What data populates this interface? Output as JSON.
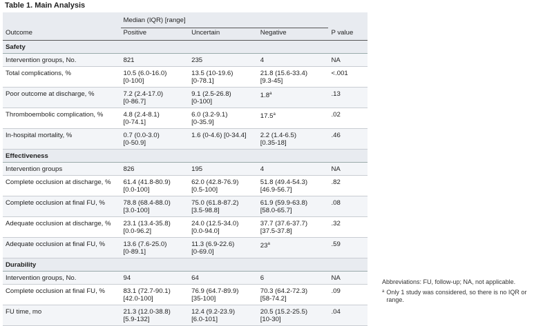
{
  "title": "Table 1. Main Analysis",
  "header": {
    "group_label": "Median (IQR) [range]",
    "columns": [
      "Outcome",
      "Positive",
      "Uncertain",
      "Negative",
      "P value"
    ]
  },
  "sections": [
    {
      "name": "Safety",
      "rows": [
        {
          "outcome": "Intervention groups, No.",
          "positive": [
            "821"
          ],
          "uncertain": [
            "235"
          ],
          "negative": [
            "4"
          ],
          "p": "NA"
        },
        {
          "outcome": "Total complications, %",
          "positive": [
            "10.5 (6.0-16.0)",
            "[0-100]"
          ],
          "uncertain": [
            "13.5 (10-19.6)",
            "[0-78.1]"
          ],
          "negative": [
            "21.8 (15.6-33.4)",
            "[9.3-45]"
          ],
          "p": "<.001"
        },
        {
          "outcome": "Poor outcome at discharge, %",
          "positive": [
            "7.2 (2.4-17.0)",
            "[0-86.7]"
          ],
          "uncertain": [
            "9.1 (2.5-26.8)",
            "[0-100]"
          ],
          "negative": [
            "1.8"
          ],
          "negative_mark": "a",
          "p": ".13"
        },
        {
          "outcome": "Thromboembolic complication, %",
          "positive": [
            "4.8 (2.4-8.1)",
            "[0-74.1]"
          ],
          "uncertain": [
            "6.0 (3.2-9.1)",
            "[0-35.9]"
          ],
          "negative": [
            "17.5"
          ],
          "negative_mark": "a",
          "p": ".02"
        },
        {
          "outcome": "In-hospital mortality, %",
          "positive": [
            "0.7 (0.0-3.0)",
            "[0-50.9]"
          ],
          "uncertain": [
            "1.6 (0-4.6) [0-34.4]"
          ],
          "negative": [
            "2.2 (1.4-6.5)",
            "[0.35-18]"
          ],
          "p": ".46"
        }
      ]
    },
    {
      "name": "Effectiveness",
      "rows": [
        {
          "outcome": "Intervention groups",
          "positive": [
            "826"
          ],
          "uncertain": [
            "195"
          ],
          "negative": [
            "4"
          ],
          "p": "NA"
        },
        {
          "outcome": "Complete occlusion at discharge, %",
          "positive": [
            "61.4 (41.8-80.9)",
            "[0.0-100]"
          ],
          "uncertain": [
            "62.0 (42.8-76.9)",
            "[0.5-100]"
          ],
          "negative": [
            "51.8 (49.4-54.3)",
            "[46.9-56.7]"
          ],
          "p": ".82"
        },
        {
          "outcome": "Complete occlusion at final FU, %",
          "positive": [
            "78.8 (68.4-88.0)",
            "[3.0-100]"
          ],
          "uncertain": [
            "75.0 (61.8-87.2)",
            "[3.5-98.8]"
          ],
          "negative": [
            "61.9 (59.9-63.8)",
            "[58.0-65.7]"
          ],
          "p": ".08"
        },
        {
          "outcome": "Adequate occlusion at discharge, %",
          "positive": [
            "23.1 (13.4-35.8)",
            "[0.0-96.2]"
          ],
          "uncertain": [
            "24.0 (12.5-34.0)",
            "[0.0-94.0]"
          ],
          "negative": [
            "37.7 (37.6-37.7)",
            "[37.5-37.8]"
          ],
          "p": ".32"
        },
        {
          "outcome": "Adequate occlusion at final FU, %",
          "positive": [
            "13.6 (7.6-25.0)",
            "[0-89.1]"
          ],
          "uncertain": [
            "11.3 (6.9-22.6)",
            "[0-69.0]"
          ],
          "negative": [
            "23"
          ],
          "negative_mark": "a",
          "p": ".59"
        }
      ]
    },
    {
      "name": "Durability",
      "rows": [
        {
          "outcome": "Intervention groups, No.",
          "positive": [
            "94"
          ],
          "uncertain": [
            "64"
          ],
          "negative": [
            "6"
          ],
          "p": "NA"
        },
        {
          "outcome": "Complete occlusion at final FU, %",
          "positive": [
            "83.1 (72.7-90.1)",
            "[42.0-100]"
          ],
          "uncertain": [
            "76.9 (64.7-89.9)",
            "[35-100]"
          ],
          "negative": [
            "70.3 (64.2-72.3)",
            "[58-74.2]"
          ],
          "p": ".09"
        },
        {
          "outcome": "FU time, mo",
          "positive": [
            "21.3 (12.0-38.8)",
            "[5.9-132]"
          ],
          "uncertain": [
            "12.4 (9.2-23.9)",
            "[6.0-101]"
          ],
          "negative": [
            "20.5 (15.2-25.5)",
            "[10-30]"
          ],
          "p": ".04"
        }
      ]
    }
  ],
  "notes": {
    "abbreviations": "Abbreviations: FU, follow-up; NA, not applicable.",
    "footnote_mark": "a",
    "footnote": "Only 1 study was considered, so there is no IQR or range."
  }
}
